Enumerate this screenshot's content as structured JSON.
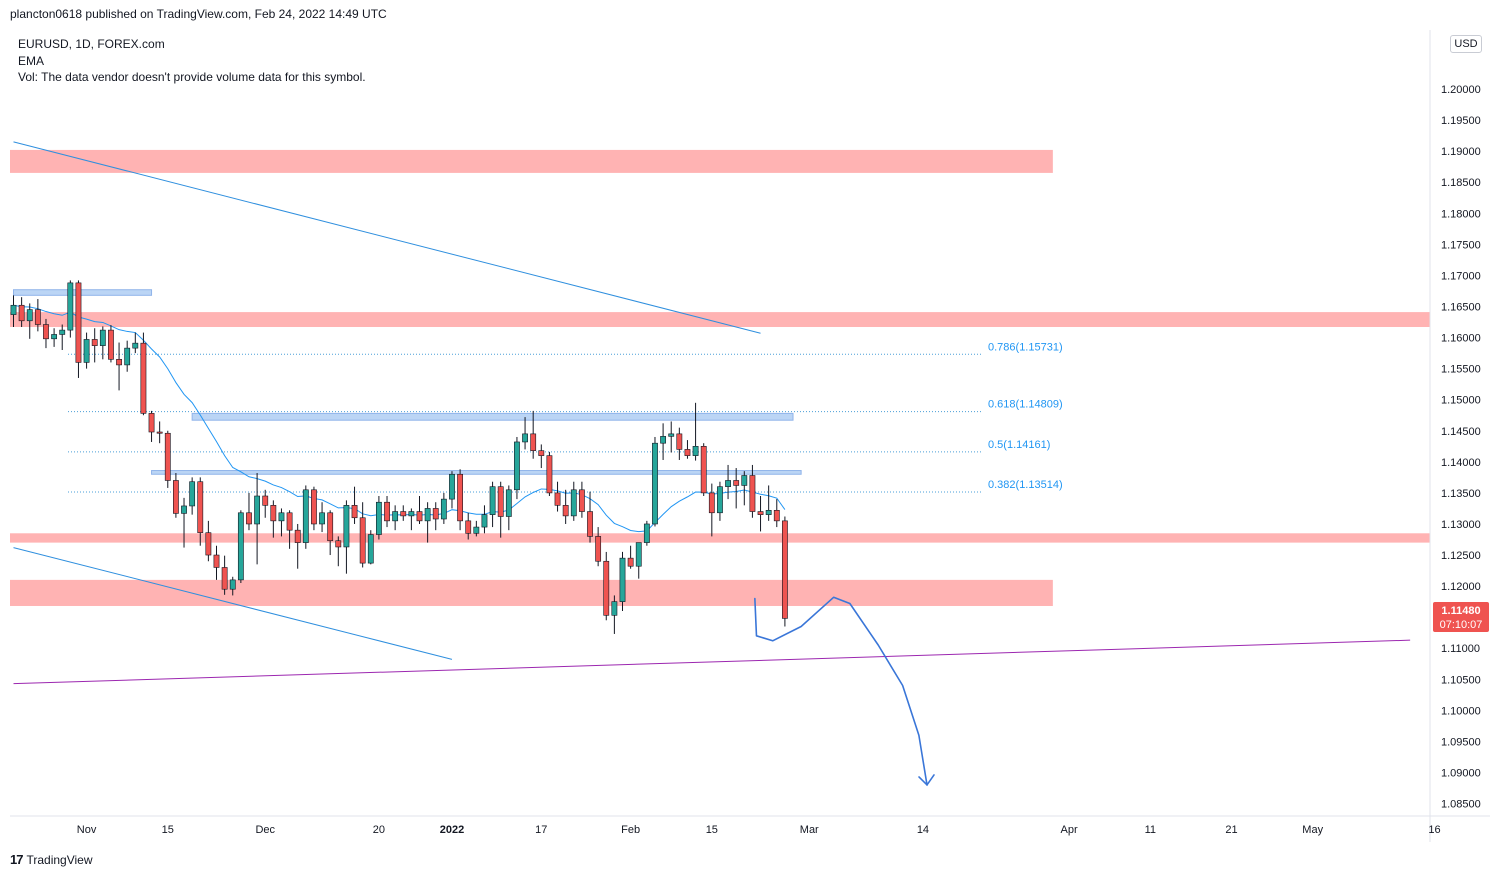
{
  "header": {
    "published": "plancton0618 published on TradingView.com, Feb 24, 2022 14:49 UTC"
  },
  "legend": {
    "symbol": "EURUSD, 1D, FOREX.com",
    "indicator": "EMA",
    "volume_note": "Vol: The data vendor doesn't provide volume data for this symbol."
  },
  "price_scale": {
    "currency": "USD",
    "current_price": "1.11480",
    "countdown": "07:10:07"
  },
  "footer": {
    "brand": "TradingView",
    "logo_glyph": "17"
  },
  "colors": {
    "bull": "#26a69a",
    "bear": "#ef5350",
    "ema": "#2196f3",
    "resistance_zone": "#ffb3b3",
    "support_zone": "#bbd5f5",
    "trendline": "#2f8fde",
    "channel_line": "#9c27b0",
    "projection": "#3a76d8"
  },
  "chart_data": {
    "type": "candlestick",
    "symbol": "EURUSD",
    "interval": "1D",
    "y_range": [
      1.083,
      1.2095
    ],
    "y_ticks": [
      "1.08500",
      "1.09000",
      "1.09500",
      "1.10000",
      "1.10500",
      "1.11000",
      "1.11500",
      "1.12000",
      "1.12500",
      "1.13000",
      "1.13500",
      "1.14000",
      "1.14500",
      "1.15000",
      "1.15500",
      "1.16000",
      "1.16500",
      "1.17000",
      "1.17500",
      "1.18000",
      "1.18500",
      "1.19000",
      "1.19500",
      "1.20000"
    ],
    "x_labels": [
      {
        "label": "Nov",
        "bar": 9
      },
      {
        "label": "15",
        "bar": 19
      },
      {
        "label": "Dec",
        "bar": 31
      },
      {
        "label": "20",
        "bar": 45
      },
      {
        "label": "2022",
        "bar": 54
      },
      {
        "label": "17",
        "bar": 65
      },
      {
        "label": "Feb",
        "bar": 76
      },
      {
        "label": "15",
        "bar": 86
      },
      {
        "label": "Mar",
        "bar": 98
      },
      {
        "label": "14",
        "bar": 112
      },
      {
        "label": "Apr",
        "bar": 130
      },
      {
        "label": "11",
        "bar": 140
      },
      {
        "label": "21",
        "bar": 150
      },
      {
        "label": "May",
        "bar": 160
      },
      {
        "label": "16",
        "bar": 175
      }
    ],
    "candles": [
      [
        1.1637,
        1.1668,
        1.1617,
        1.1652
      ],
      [
        1.1652,
        1.1665,
        1.1617,
        1.1627
      ],
      [
        1.1627,
        1.1655,
        1.1598,
        1.1645
      ],
      [
        1.1645,
        1.1662,
        1.161,
        1.1621
      ],
      [
        1.1621,
        1.163,
        1.1583,
        1.1598
      ],
      [
        1.1598,
        1.1615,
        1.1585,
        1.1605
      ],
      [
        1.1605,
        1.1621,
        1.158,
        1.1612
      ],
      [
        1.1612,
        1.1692,
        1.16,
        1.1688
      ],
      [
        1.1688,
        1.1692,
        1.1535,
        1.156
      ],
      [
        1.156,
        1.1608,
        1.155,
        1.1597
      ],
      [
        1.1597,
        1.1615,
        1.156,
        1.1587
      ],
      [
        1.1587,
        1.1618,
        1.1565,
        1.1612
      ],
      [
        1.1612,
        1.162,
        1.156,
        1.1565
      ],
      [
        1.1565,
        1.1592,
        1.1515,
        1.1556
      ],
      [
        1.1556,
        1.1595,
        1.1545,
        1.1583
      ],
      [
        1.1583,
        1.1608,
        1.1575,
        1.1591
      ],
      [
        1.1591,
        1.1608,
        1.1475,
        1.1478
      ],
      [
        1.1478,
        1.1482,
        1.1432,
        1.1448
      ],
      [
        1.1448,
        1.1465,
        1.143,
        1.1446
      ],
      [
        1.1446,
        1.145,
        1.1358,
        1.137
      ],
      [
        1.137,
        1.1382,
        1.131,
        1.1317
      ],
      [
        1.1317,
        1.1342,
        1.1262,
        1.1329
      ],
      [
        1.1329,
        1.1375,
        1.1315,
        1.1368
      ],
      [
        1.1368,
        1.1375,
        1.1265,
        1.1286
      ],
      [
        1.1286,
        1.1305,
        1.124,
        1.125
      ],
      [
        1.125,
        1.1265,
        1.121,
        1.123
      ],
      [
        1.123,
        1.1249,
        1.1186,
        1.1195
      ],
      [
        1.1195,
        1.1215,
        1.1185,
        1.121
      ],
      [
        1.121,
        1.1322,
        1.1205,
        1.1318
      ],
      [
        1.1318,
        1.135,
        1.129,
        1.13
      ],
      [
        1.13,
        1.1382,
        1.1235,
        1.1345
      ],
      [
        1.1345,
        1.1355,
        1.131,
        1.133
      ],
      [
        1.133,
        1.1338,
        1.1278,
        1.1305
      ],
      [
        1.1305,
        1.1325,
        1.128,
        1.1318
      ],
      [
        1.1318,
        1.1322,
        1.126,
        1.129
      ],
      [
        1.129,
        1.13,
        1.1228,
        1.127
      ],
      [
        1.127,
        1.1362,
        1.126,
        1.1355
      ],
      [
        1.1355,
        1.136,
        1.129,
        1.13
      ],
      [
        1.13,
        1.1335,
        1.1287,
        1.1318
      ],
      [
        1.1318,
        1.1322,
        1.125,
        1.1273
      ],
      [
        1.1273,
        1.128,
        1.1232,
        1.1263
      ],
      [
        1.1263,
        1.1338,
        1.122,
        1.133
      ],
      [
        1.133,
        1.136,
        1.13,
        1.131
      ],
      [
        1.131,
        1.1335,
        1.123,
        1.1237
      ],
      [
        1.1237,
        1.129,
        1.1235,
        1.1283
      ],
      [
        1.1283,
        1.1345,
        1.1275,
        1.1335
      ],
      [
        1.1335,
        1.1345,
        1.1295,
        1.1305
      ],
      [
        1.1305,
        1.133,
        1.129,
        1.132
      ],
      [
        1.132,
        1.133,
        1.1305,
        1.1313
      ],
      [
        1.1313,
        1.1325,
        1.129,
        1.132
      ],
      [
        1.132,
        1.1345,
        1.13,
        1.1305
      ],
      [
        1.1305,
        1.1335,
        1.127,
        1.1325
      ],
      [
        1.1325,
        1.1335,
        1.129,
        1.1308
      ],
      [
        1.1308,
        1.135,
        1.13,
        1.134
      ],
      [
        1.134,
        1.1385,
        1.1325,
        1.138
      ],
      [
        1.138,
        1.1388,
        1.129,
        1.1305
      ],
      [
        1.1305,
        1.1318,
        1.1275,
        1.1285
      ],
      [
        1.1285,
        1.1305,
        1.128,
        1.1295
      ],
      [
        1.1295,
        1.133,
        1.1285,
        1.1315
      ],
      [
        1.1315,
        1.1368,
        1.1295,
        1.136
      ],
      [
        1.136,
        1.1368,
        1.1278,
        1.1312
      ],
      [
        1.1312,
        1.1362,
        1.129,
        1.1355
      ],
      [
        1.1355,
        1.144,
        1.134,
        1.1432
      ],
      [
        1.1432,
        1.1472,
        1.142,
        1.1445
      ],
      [
        1.1445,
        1.1482,
        1.1405,
        1.1418
      ],
      [
        1.1418,
        1.1428,
        1.139,
        1.141
      ],
      [
        1.141,
        1.1416,
        1.1345,
        1.135
      ],
      [
        1.135,
        1.1368,
        1.132,
        1.133
      ],
      [
        1.133,
        1.1355,
        1.13,
        1.1313
      ],
      [
        1.1313,
        1.1368,
        1.1305,
        1.1355
      ],
      [
        1.1355,
        1.1368,
        1.131,
        1.132
      ],
      [
        1.132,
        1.1352,
        1.127,
        1.128
      ],
      [
        1.128,
        1.1295,
        1.1232,
        1.124
      ],
      [
        1.124,
        1.1255,
        1.1145,
        1.1153
      ],
      [
        1.1153,
        1.1185,
        1.1123,
        1.1175
      ],
      [
        1.1175,
        1.1255,
        1.116,
        1.1245
      ],
      [
        1.1245,
        1.1265,
        1.1228,
        1.1232
      ],
      [
        1.1232,
        1.1268,
        1.1212,
        1.127
      ],
      [
        1.127,
        1.1305,
        1.1265,
        1.13
      ],
      [
        1.13,
        1.144,
        1.1296,
        1.143
      ],
      [
        1.143,
        1.1462,
        1.1403,
        1.1441
      ],
      [
        1.1441,
        1.1465,
        1.1415,
        1.1445
      ],
      [
        1.1445,
        1.1455,
        1.1403,
        1.142
      ],
      [
        1.142,
        1.1435,
        1.1405,
        1.141
      ],
      [
        1.141,
        1.1495,
        1.1402,
        1.1425
      ],
      [
        1.1425,
        1.143,
        1.1345,
        1.135
      ],
      [
        1.135,
        1.1365,
        1.128,
        1.1318
      ],
      [
        1.1318,
        1.1368,
        1.1305,
        1.136
      ],
      [
        1.136,
        1.1395,
        1.134,
        1.137
      ],
      [
        1.137,
        1.139,
        1.1325,
        1.1362
      ],
      [
        1.1362,
        1.1385,
        1.133,
        1.1378
      ],
      [
        1.1378,
        1.1395,
        1.131,
        1.132
      ],
      [
        1.132,
        1.1345,
        1.1288,
        1.1315
      ],
      [
        1.1315,
        1.1362,
        1.1305,
        1.1322
      ],
      [
        1.1322,
        1.134,
        1.1295,
        1.1305
      ],
      [
        1.1305,
        1.1312,
        1.1135,
        1.1148
      ]
    ],
    "ema_color": "#2196f3",
    "zones": [
      {
        "kind": "resistance",
        "y1": 1.1865,
        "y2": 1.1902,
        "x_end_bar": 128
      },
      {
        "kind": "resistance",
        "y1": 1.1617,
        "y2": 1.1641,
        "x_end_bar": 178
      },
      {
        "kind": "resistance",
        "y1": 1.127,
        "y2": 1.1285,
        "x_end_bar": 178
      },
      {
        "kind": "resistance",
        "y1": 1.1168,
        "y2": 1.121,
        "x_end_bar": 128
      },
      {
        "kind": "support",
        "y1": 1.1668,
        "y2": 1.1677,
        "x_start_bar": 0,
        "x_end_bar": 17
      },
      {
        "kind": "support",
        "y1": 1.1467,
        "y2": 1.1478,
        "x_start_bar": 22,
        "x_end_bar": 96
      },
      {
        "kind": "support",
        "y1": 1.138,
        "y2": 1.1386,
        "x_start_bar": 17,
        "x_end_bar": 97
      }
    ],
    "fibonacci": [
      {
        "label": "0.786(1.15731)",
        "price": 1.15731
      },
      {
        "label": "0.618(1.14809)",
        "price": 1.14809
      },
      {
        "label": "0.5(1.14161)",
        "price": 1.14161
      },
      {
        "label": "0.382(1.13514)",
        "price": 1.13514
      }
    ],
    "trendlines": [
      {
        "from": [
          0,
          1.1915
        ],
        "to": [
          92,
          1.1607
        ],
        "color": "#2f8fde"
      },
      {
        "from": [
          0,
          1.1262
        ],
        "to": [
          54,
          1.1082
        ],
        "color": "#2f8fde"
      },
      {
        "from": [
          0,
          1.1043
        ],
        "to": [
          172,
          1.1113
        ],
        "color": "#9c27b0"
      }
    ],
    "projection_path": [
      [
        91.3,
        1.118
      ],
      [
        91.5,
        1.112
      ],
      [
        93.5,
        1.1112
      ],
      [
        97,
        1.1135
      ],
      [
        101,
        1.1182
      ],
      [
        103,
        1.1172
      ],
      [
        106.5,
        1.1105
      ],
      [
        109.5,
        1.104
      ],
      [
        111.5,
        1.096
      ],
      [
        112.5,
        1.088
      ]
    ]
  }
}
